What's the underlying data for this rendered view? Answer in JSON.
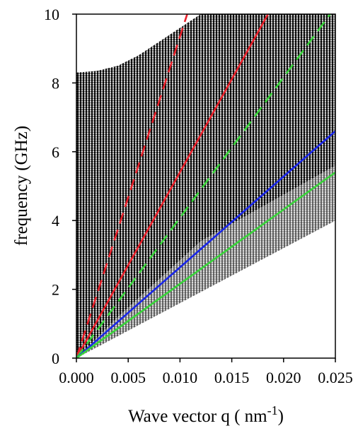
{
  "chart_data": {
    "type": "scatter",
    "title": "",
    "xlabel": "Wave vector q ( nm",
    "xlabel_superscript": "-1",
    "xlabel_suffix": ")",
    "ylabel": "frequency (GHz)",
    "xlim": [
      0,
      0.025
    ],
    "ylim": [
      0,
      10
    ],
    "x_ticks": [
      "0.000",
      "0.005",
      "0.010",
      "0.015",
      "0.020",
      "0.025"
    ],
    "y_ticks": [
      "0",
      "2",
      "4",
      "6",
      "8",
      "10"
    ],
    "grid": false,
    "legend": "none",
    "dispersion_band": {
      "color": "#000000",
      "upper_edge": [
        [
          0,
          8.3
        ],
        [
          0.002,
          8.35
        ],
        [
          0.004,
          8.5
        ],
        [
          0.006,
          8.8
        ],
        [
          0.008,
          9.2
        ],
        [
          0.01,
          9.6
        ],
        [
          0.012,
          10.0
        ],
        [
          0.025,
          10.0
        ]
      ],
      "lower_edge": [
        [
          0,
          0
        ],
        [
          0.025,
          4.0
        ]
      ]
    },
    "series": [
      {
        "color": "#e8202a",
        "style": "dashed",
        "x": [
          0,
          0.0107
        ],
        "y": [
          0,
          10.0
        ]
      },
      {
        "color": "#e8202a",
        "style": "solid",
        "x": [
          0,
          0.0185
        ],
        "y": [
          0,
          10.0
        ]
      },
      {
        "color": "#39d43a",
        "style": "dashed",
        "x": [
          0,
          0.0245
        ],
        "y": [
          0,
          10.0
        ]
      },
      {
        "color": "#1a26e8",
        "style": "solid",
        "x": [
          0,
          0.025
        ],
        "y": [
          0,
          6.6
        ]
      },
      {
        "color": "#39d43a",
        "style": "solid",
        "x": [
          0,
          0.025
        ],
        "y": [
          0,
          5.4
        ]
      }
    ]
  }
}
